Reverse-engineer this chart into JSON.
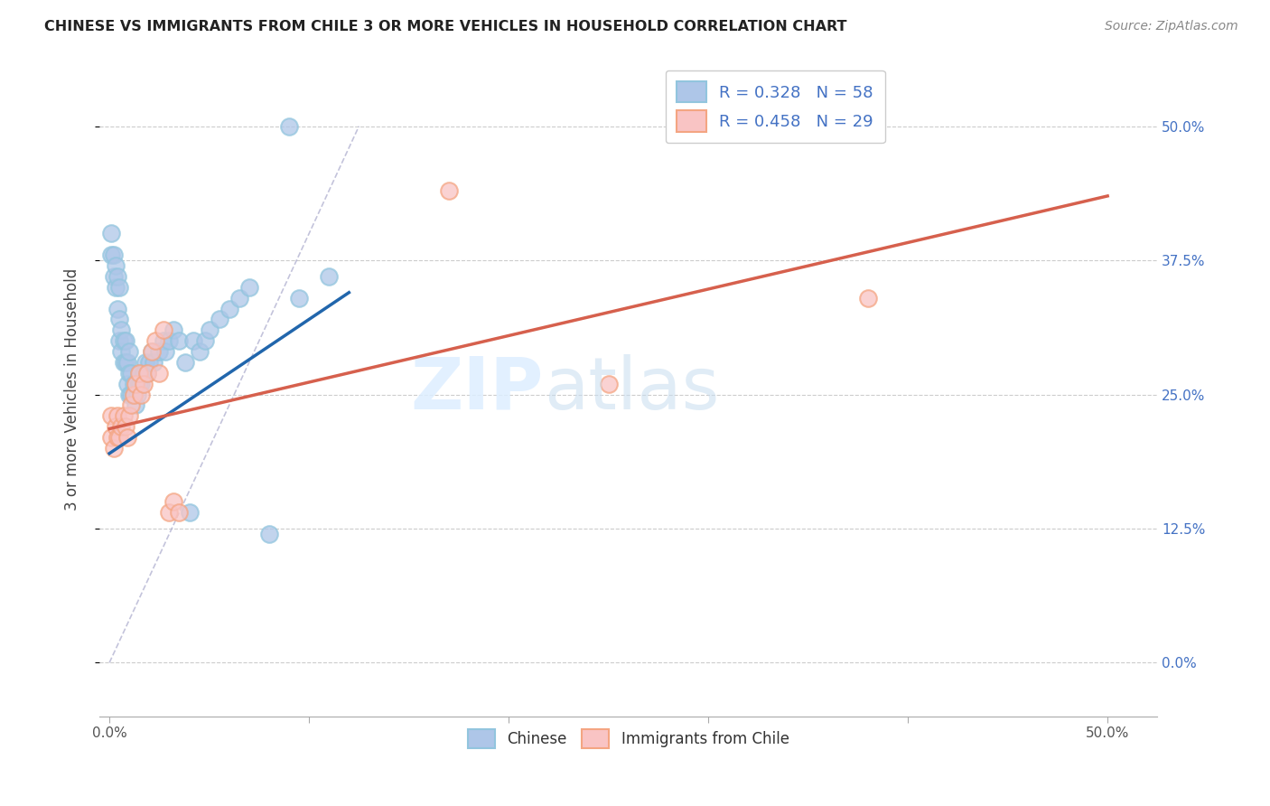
{
  "title": "CHINESE VS IMMIGRANTS FROM CHILE 3 OR MORE VEHICLES IN HOUSEHOLD CORRELATION CHART",
  "source": "Source: ZipAtlas.com",
  "ylabel": "3 or more Vehicles in Household",
  "legend_r": [
    0.328,
    0.458
  ],
  "legend_n": [
    58,
    29
  ],
  "x_ticks": [
    0.0,
    0.1,
    0.2,
    0.3,
    0.4,
    0.5
  ],
  "x_tick_labels": [
    "0.0%",
    "",
    "",
    "",
    "",
    "50.0%"
  ],
  "y_ticks": [
    0.0,
    0.125,
    0.25,
    0.375,
    0.5
  ],
  "y_tick_labels_right": [
    "0.0%",
    "12.5%",
    "25.0%",
    "37.5%",
    "50.0%"
  ],
  "xlim": [
    -0.005,
    0.525
  ],
  "ylim": [
    -0.05,
    0.56
  ],
  "blue_color": "#92c5de",
  "pink_color": "#f4a582",
  "blue_fill": "#aec6e8",
  "pink_fill": "#f9c4c4",
  "blue_line_color": "#2166ac",
  "pink_line_color": "#d6604d",
  "dash_color": "#aaaacc",
  "blue_line_x": [
    0.0,
    0.12
  ],
  "blue_line_y": [
    0.195,
    0.345
  ],
  "pink_line_x": [
    0.0,
    0.5
  ],
  "pink_line_y": [
    0.218,
    0.435
  ],
  "dash_line_x": [
    0.0,
    0.125
  ],
  "dash_line_y": [
    0.0,
    0.5
  ],
  "chinese_x": [
    0.001,
    0.001,
    0.002,
    0.002,
    0.003,
    0.003,
    0.004,
    0.004,
    0.005,
    0.005,
    0.005,
    0.006,
    0.006,
    0.007,
    0.007,
    0.008,
    0.008,
    0.009,
    0.009,
    0.01,
    0.01,
    0.01,
    0.011,
    0.011,
    0.012,
    0.012,
    0.013,
    0.013,
    0.014,
    0.015,
    0.015,
    0.016,
    0.017,
    0.018,
    0.019,
    0.02,
    0.021,
    0.022,
    0.025,
    0.027,
    0.028,
    0.03,
    0.032,
    0.035,
    0.038,
    0.04,
    0.042,
    0.045,
    0.048,
    0.05,
    0.055,
    0.06,
    0.065,
    0.07,
    0.08,
    0.09,
    0.095,
    0.11
  ],
  "chinese_y": [
    0.38,
    0.4,
    0.36,
    0.38,
    0.35,
    0.37,
    0.33,
    0.36,
    0.3,
    0.32,
    0.35,
    0.29,
    0.31,
    0.28,
    0.3,
    0.28,
    0.3,
    0.26,
    0.28,
    0.25,
    0.27,
    0.29,
    0.25,
    0.27,
    0.25,
    0.26,
    0.24,
    0.26,
    0.25,
    0.26,
    0.27,
    0.26,
    0.27,
    0.28,
    0.27,
    0.28,
    0.29,
    0.28,
    0.29,
    0.3,
    0.29,
    0.3,
    0.31,
    0.3,
    0.28,
    0.14,
    0.3,
    0.29,
    0.3,
    0.31,
    0.32,
    0.33,
    0.34,
    0.35,
    0.12,
    0.5,
    0.34,
    0.36
  ],
  "chile_x": [
    0.001,
    0.001,
    0.002,
    0.003,
    0.004,
    0.004,
    0.005,
    0.006,
    0.007,
    0.008,
    0.009,
    0.01,
    0.011,
    0.012,
    0.013,
    0.015,
    0.016,
    0.017,
    0.019,
    0.021,
    0.023,
    0.025,
    0.027,
    0.03,
    0.032,
    0.035,
    0.17,
    0.38,
    0.25
  ],
  "chile_y": [
    0.21,
    0.23,
    0.2,
    0.22,
    0.21,
    0.23,
    0.21,
    0.22,
    0.23,
    0.22,
    0.21,
    0.23,
    0.24,
    0.25,
    0.26,
    0.27,
    0.25,
    0.26,
    0.27,
    0.29,
    0.3,
    0.27,
    0.31,
    0.14,
    0.15,
    0.14,
    0.44,
    0.34,
    0.26
  ]
}
